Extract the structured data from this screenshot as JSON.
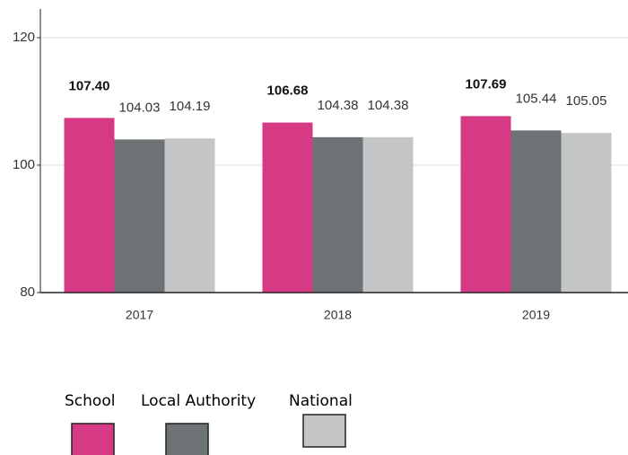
{
  "chart_data": {
    "type": "bar",
    "categories": [
      "2017",
      "2018",
      "2019"
    ],
    "series": [
      {
        "name": "School",
        "color": "#d63a84",
        "values": [
          107.4,
          106.68,
          107.69
        ],
        "value_labels": [
          "107.40",
          "106.68",
          "107.69"
        ]
      },
      {
        "name": "Local Authority",
        "color": "#6d7375",
        "values": [
          104.03,
          104.38,
          105.44
        ],
        "value_labels": [
          "104.03",
          "104.38",
          "105.44"
        ]
      },
      {
        "name": "National",
        "color": "#c4c5c7",
        "values": [
          104.19,
          104.38,
          105.05
        ],
        "value_labels": [
          "104.19",
          "104.38",
          "105.05"
        ]
      }
    ],
    "ylim": [
      80,
      124.5
    ],
    "yticks": [
      80,
      100,
      120
    ],
    "grid": true,
    "legend": "bottom"
  }
}
